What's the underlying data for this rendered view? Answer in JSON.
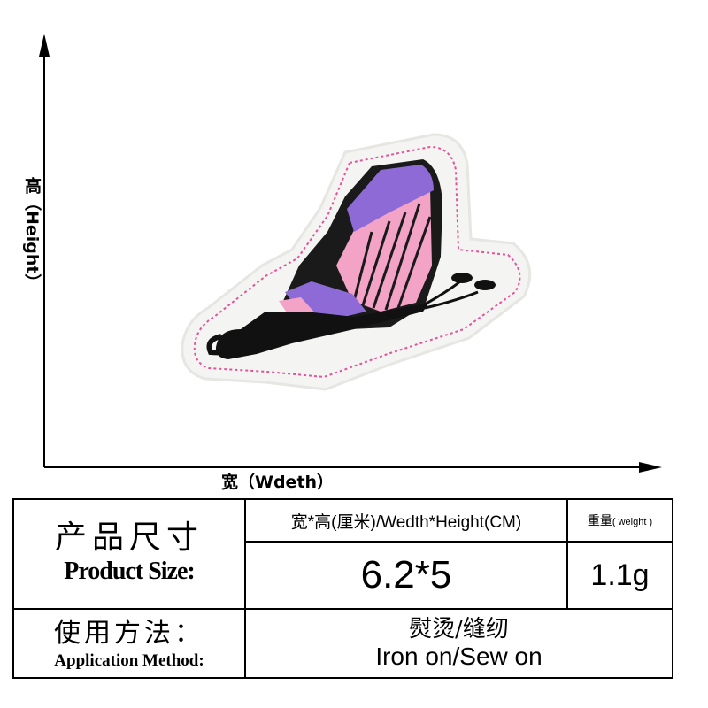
{
  "diagram": {
    "y_axis_label": "高（Height）",
    "x_axis_label": "宽（Wdeth）",
    "product_image": "purple-pink-butterfly-embroidered-patch"
  },
  "colors": {
    "patch_base": "#f4f4f2",
    "stitch_border": "#e0559a",
    "wing_pink": "#f2a3c6",
    "wing_purple": "#8d6ad6",
    "body_black": "#111111"
  },
  "spec_table": {
    "title_cn": "产品尺寸",
    "title_en": "Product Size:",
    "size_header": "宽*高(厘米)/Wedth*Height(CM)",
    "weight_header_cn": "重量",
    "weight_header_en": "( weight )",
    "size_value": "6.2*5",
    "weight_value": "1.1g",
    "method_title_cn": "使用方法：",
    "method_title_en": "Application Method:",
    "method_value_cn": "熨烫/缝纫",
    "method_value_en": "Iron on/Sew on"
  }
}
